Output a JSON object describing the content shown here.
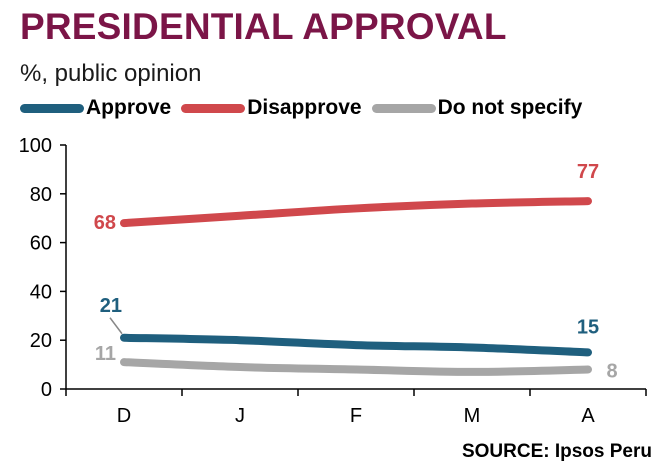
{
  "title": "PRESIDENTIAL APPROVAL",
  "subtitle": "%, public opinion",
  "source": "SOURCE: Ipsos Peru",
  "chart_data": {
    "type": "line",
    "categories": [
      "D",
      "J",
      "F",
      "M",
      "A"
    ],
    "ylim": [
      0,
      100
    ],
    "yticks": [
      0,
      20,
      40,
      60,
      80,
      100
    ],
    "grid": false,
    "legend_position": "top-left",
    "series": [
      {
        "name": "Approve",
        "color": "#1f5f7e",
        "values": [
          21,
          20,
          18,
          17,
          15
        ],
        "labels": [
          {
            "index": 0,
            "text": "21"
          },
          {
            "index": 4,
            "text": "15"
          }
        ]
      },
      {
        "name": "Disapprove",
        "color": "#d0484c",
        "values": [
          68,
          71,
          74,
          76,
          77
        ],
        "labels": [
          {
            "index": 0,
            "text": "68"
          },
          {
            "index": 4,
            "text": "77"
          }
        ]
      },
      {
        "name": "Do not specify",
        "color": "#a6a6a6",
        "values": [
          11,
          9,
          8,
          7,
          8
        ],
        "labels": [
          {
            "index": 0,
            "text": "11"
          },
          {
            "index": 4,
            "text": "8"
          }
        ]
      }
    ]
  }
}
